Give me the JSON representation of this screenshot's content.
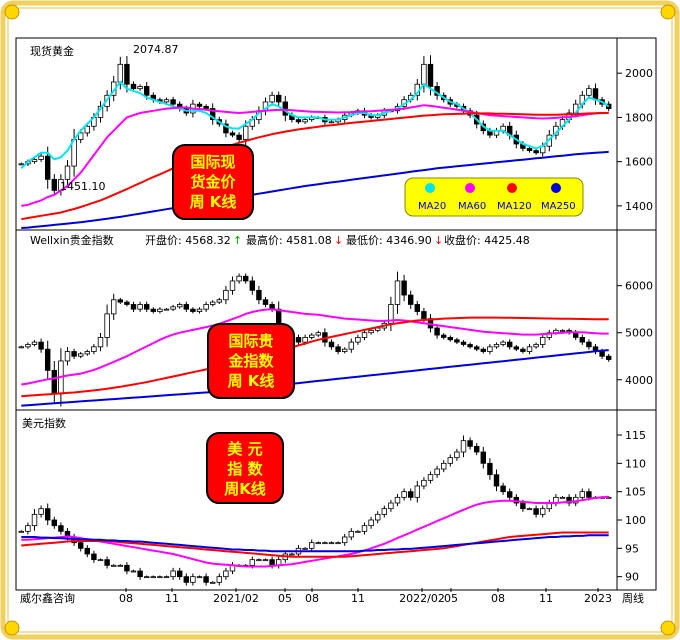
{
  "footer": {
    "brand": "威尔鑫咨询",
    "period": "周线",
    "x_ticks": [
      "08",
      "11",
      "2021/02",
      "05",
      "08",
      "11",
      "2022/02",
      "05",
      "08",
      "11",
      "2023"
    ]
  },
  "colors": {
    "ma20": "#00e5ee",
    "ma60": "#ff00ff",
    "ma120": "#ff0000",
    "ma250": "#0000dd",
    "badge_bg": "#ff0000",
    "badge_text": "#ffff00",
    "legend_bg": "#ffff00",
    "frame": "#f2d060"
  },
  "chart_data": [
    {
      "type": "candlestick",
      "name": "现货黄金",
      "label": "现货黄金",
      "badge": [
        "国际现",
        "货金价",
        "周  K线"
      ],
      "y_ticks": [
        "2000",
        "1800",
        "1600",
        "1400"
      ],
      "ylim": [
        1300,
        2150
      ],
      "annotations": [
        "2074.87",
        "1451.10"
      ],
      "legend": [
        "MA20",
        "MA60",
        "MA120",
        "MA250"
      ],
      "closes": [
        1590,
        1600,
        1610,
        1625,
        1520,
        1470,
        1520,
        1580,
        1700,
        1730,
        1760,
        1800,
        1850,
        1900,
        1960,
        2040,
        1950,
        1930,
        1940,
        1900,
        1880,
        1870,
        1880,
        1860,
        1840,
        1820,
        1860,
        1850,
        1840,
        1790,
        1770,
        1730,
        1720,
        1700,
        1760,
        1790,
        1830,
        1870,
        1900,
        1870,
        1810,
        1790,
        1780,
        1790,
        1800,
        1800,
        1780,
        1780,
        1790,
        1810,
        1820,
        1830,
        1810,
        1800,
        1810,
        1830,
        1830,
        1850,
        1880,
        1900,
        1950,
        2040,
        1940,
        1900,
        1880,
        1860,
        1850,
        1830,
        1810,
        1770,
        1740,
        1720,
        1740,
        1760,
        1720,
        1680,
        1660,
        1650,
        1640,
        1670,
        1720,
        1760,
        1790,
        1820,
        1860,
        1900,
        1930,
        1880,
        1860,
        1840
      ],
      "ma20": [
        1570,
        1600,
        1620,
        1640,
        1640,
        1610,
        1620,
        1650,
        1700,
        1740,
        1770,
        1800,
        1840,
        1880,
        1920,
        1960,
        1930,
        1920,
        1910,
        1890,
        1880,
        1870,
        1860,
        1850,
        1840,
        1830,
        1830,
        1830,
        1820,
        1800,
        1780,
        1760,
        1750,
        1750,
        1770,
        1790,
        1820,
        1840,
        1860,
        1850,
        1830,
        1810,
        1800,
        1800,
        1800,
        1800,
        1790,
        1790,
        1790,
        1800,
        1810,
        1820,
        1820,
        1810,
        1810,
        1820,
        1830,
        1840,
        1860,
        1880,
        1910,
        1950,
        1930,
        1910,
        1890,
        1870,
        1860,
        1840,
        1820,
        1790,
        1760,
        1740,
        1740,
        1740,
        1720,
        1700,
        1680,
        1670,
        1660,
        1670,
        1700,
        1730,
        1760,
        1790,
        1820,
        1860,
        1890,
        1880,
        1870,
        1850
      ],
      "ma60": [
        1400,
        1405,
        1415,
        1425,
        1440,
        1450,
        1470,
        1490,
        1520,
        1550,
        1590,
        1630,
        1670,
        1710,
        1740,
        1770,
        1800,
        1810,
        1820,
        1825,
        1830,
        1835,
        1840,
        1842,
        1845,
        1845,
        1840,
        1838,
        1835,
        1830,
        1828,
        1825,
        1822,
        1820,
        1822,
        1825,
        1828,
        1830,
        1832,
        1834,
        1834,
        1832,
        1830,
        1828,
        1826,
        1825,
        1824,
        1823,
        1822,
        1823,
        1824,
        1826,
        1827,
        1828,
        1830,
        1832,
        1834,
        1836,
        1840,
        1845,
        1850,
        1855,
        1852,
        1848,
        1844,
        1840,
        1835,
        1830,
        1825,
        1820,
        1815,
        1810,
        1808,
        1806,
        1804,
        1802,
        1800,
        1798,
        1796,
        1795,
        1796,
        1798,
        1800,
        1802,
        1806,
        1810,
        1815,
        1818,
        1820,
        1820
      ],
      "ma120": [
        1340,
        1345,
        1350,
        1355,
        1360,
        1365,
        1370,
        1378,
        1386,
        1395,
        1405,
        1415,
        1425,
        1437,
        1450,
        1463,
        1476,
        1490,
        1503,
        1517,
        1530,
        1543,
        1556,
        1570,
        1583,
        1596,
        1610,
        1622,
        1634,
        1645,
        1656,
        1666,
        1676,
        1685,
        1694,
        1702,
        1710,
        1717,
        1724,
        1730,
        1736,
        1741,
        1746,
        1750,
        1754,
        1758,
        1762,
        1765,
        1768,
        1772,
        1775,
        1778,
        1781,
        1784,
        1787,
        1790,
        1793,
        1796,
        1799,
        1802,
        1805,
        1808,
        1810,
        1812,
        1814,
        1815,
        1816,
        1817,
        1818,
        1818,
        1818,
        1818,
        1817,
        1817,
        1816,
        1815,
        1814,
        1813,
        1812,
        1812,
        1812,
        1812,
        1813,
        1814,
        1815,
        1817,
        1818,
        1819,
        1820,
        1820
      ],
      "ma250": [
        1300,
        1302,
        1305,
        1308,
        1311,
        1314,
        1317,
        1320,
        1323,
        1326,
        1330,
        1334,
        1338,
        1342,
        1346,
        1350,
        1355,
        1360,
        1365,
        1370,
        1375,
        1380,
        1385,
        1390,
        1395,
        1400,
        1405,
        1410,
        1415,
        1420,
        1425,
        1430,
        1435,
        1440,
        1445,
        1450,
        1455,
        1460,
        1465,
        1470,
        1475,
        1480,
        1485,
        1490,
        1494,
        1498,
        1502,
        1506,
        1510,
        1514,
        1518,
        1522,
        1526,
        1530,
        1534,
        1538,
        1542,
        1546,
        1550,
        1554,
        1558,
        1562,
        1566,
        1570,
        1573,
        1576,
        1579,
        1582,
        1585,
        1588,
        1591,
        1594,
        1597,
        1600,
        1603,
        1606,
        1609,
        1612,
        1615,
        1618,
        1621,
        1624,
        1627,
        1630,
        1633,
        1636,
        1638,
        1640,
        1642,
        1644
      ]
    },
    {
      "type": "candlestick",
      "name": "Wellxin贵金指数",
      "label": "Wellxin贵金指数",
      "stats": {
        "open": "开盘价: 4568.32",
        "high": "最高价: 4581.08",
        "low": "最低价: 4346.90",
        "close": "收盘价: 4425.48"
      },
      "badge": [
        "国际贵",
        "金指数",
        "周  K线"
      ],
      "y_ticks": [
        "6000",
        "5000",
        "4000"
      ],
      "ylim": [
        3400,
        6800
      ],
      "closes": [
        4700,
        4750,
        4800,
        4650,
        4200,
        3700,
        4400,
        4600,
        4500,
        4550,
        4600,
        4700,
        4900,
        5400,
        5700,
        5650,
        5600,
        5500,
        5600,
        5500,
        5450,
        5500,
        5500,
        5550,
        5600,
        5500,
        5450,
        5500,
        5600,
        5650,
        5700,
        5900,
        6100,
        6200,
        6100,
        5900,
        5700,
        5600,
        5500,
        5100,
        5000,
        4900,
        4800,
        4900,
        4950,
        5000,
        4800,
        4700,
        4600,
        4650,
        4800,
        4900,
        5000,
        5050,
        5100,
        5200,
        5600,
        6100,
        5800,
        5600,
        5450,
        5300,
        5100,
        4950,
        4900,
        4850,
        4800,
        4750,
        4700,
        4650,
        4600,
        4700,
        4750,
        4800,
        4700,
        4650,
        4600,
        4700,
        4750,
        4900,
        5000,
        5050,
        5050,
        5000,
        4900,
        4800,
        4700,
        4600,
        4500,
        4430
      ],
      "ma60": [
        3900,
        3920,
        3950,
        3980,
        4010,
        4030,
        4060,
        4090,
        4110,
        4130,
        4170,
        4210,
        4260,
        4320,
        4380,
        4440,
        4500,
        4570,
        4640,
        4710,
        4780,
        4850,
        4910,
        4960,
        5000,
        5030,
        5060,
        5090,
        5120,
        5150,
        5190,
        5240,
        5290,
        5340,
        5400,
        5440,
        5470,
        5490,
        5500,
        5480,
        5460,
        5440,
        5420,
        5400,
        5390,
        5380,
        5360,
        5340,
        5320,
        5300,
        5290,
        5280,
        5270,
        5260,
        5250,
        5250,
        5260,
        5270,
        5260,
        5240,
        5220,
        5200,
        5180,
        5160,
        5140,
        5120,
        5100,
        5080,
        5060,
        5040,
        5020,
        5010,
        5000,
        4990,
        4980,
        4970,
        4960,
        4960,
        4960,
        4970,
        4980,
        4990,
        5000,
        5010,
        5010,
        5010,
        5000,
        4990,
        4980,
        4980
      ],
      "ma120": [
        3650,
        3660,
        3670,
        3680,
        3690,
        3700,
        3710,
        3720,
        3730,
        3745,
        3760,
        3775,
        3790,
        3810,
        3830,
        3850,
        3875,
        3900,
        3925,
        3950,
        3980,
        4010,
        4040,
        4070,
        4100,
        4130,
        4160,
        4190,
        4220,
        4250,
        4280,
        4310,
        4340,
        4370,
        4410,
        4450,
        4490,
        4530,
        4570,
        4610,
        4650,
        4690,
        4730,
        4770,
        4810,
        4850,
        4880,
        4910,
        4940,
        4970,
        5000,
        5030,
        5060,
        5090,
        5120,
        5150,
        5180,
        5200,
        5220,
        5240,
        5260,
        5270,
        5280,
        5290,
        5300,
        5305,
        5310,
        5315,
        5320,
        5320,
        5320,
        5320,
        5320,
        5318,
        5316,
        5314,
        5312,
        5310,
        5308,
        5305,
        5302,
        5300,
        5298,
        5296,
        5294,
        5292,
        5290,
        5288,
        5286,
        5285
      ],
      "ma250": [
        3450,
        3460,
        3470,
        3480,
        3490,
        3500,
        3510,
        3520,
        3530,
        3540,
        3550,
        3560,
        3570,
        3580,
        3590,
        3600,
        3610,
        3620,
        3630,
        3640,
        3650,
        3660,
        3670,
        3680,
        3690,
        3700,
        3710,
        3720,
        3730,
        3740,
        3750,
        3765,
        3780,
        3795,
        3810,
        3825,
        3840,
        3855,
        3870,
        3885,
        3900,
        3915,
        3930,
        3945,
        3960,
        3975,
        3990,
        4005,
        4020,
        4035,
        4050,
        4065,
        4080,
        4095,
        4110,
        4125,
        4140,
        4155,
        4170,
        4185,
        4200,
        4215,
        4230,
        4245,
        4260,
        4275,
        4290,
        4305,
        4320,
        4335,
        4350,
        4365,
        4380,
        4395,
        4410,
        4425,
        4440,
        4455,
        4470,
        4485,
        4500,
        4515,
        4530,
        4545,
        4560,
        4575,
        4590,
        4605,
        4620,
        4630
      ]
    },
    {
      "type": "candlestick",
      "name": "美元指数",
      "label": "美元指数",
      "badge": [
        "美  元",
        "指  数",
        "周K线"
      ],
      "y_ticks": [
        "115",
        "110",
        "105",
        "100",
        "95",
        "90"
      ],
      "ylim": [
        88,
        118
      ],
      "closes": [
        98,
        99,
        101,
        102,
        100,
        99,
        98,
        97,
        96,
        95,
        94,
        93,
        93,
        92,
        92,
        92,
        91,
        91,
        90,
        90,
        90,
        90,
        90,
        91,
        90,
        89,
        90,
        90,
        89,
        89,
        90,
        91,
        92,
        92,
        92,
        93,
        93,
        93,
        92,
        93,
        94,
        94,
        95,
        95,
        96,
        96,
        96,
        96,
        96,
        97,
        98,
        98,
        99,
        100,
        101,
        102,
        103,
        104,
        105,
        104,
        106,
        107,
        108,
        109,
        110,
        111,
        112,
        114,
        113,
        112,
        110,
        108,
        106,
        105,
        104,
        103,
        102,
        102,
        101,
        102,
        103,
        104,
        104,
        103,
        104,
        105,
        104,
        104,
        104,
        104
      ],
      "ma60": [
        96.5,
        96.5,
        96.6,
        96.7,
        96.8,
        96.9,
        97.0,
        97.1,
        97.0,
        96.8,
        96.6,
        96.4,
        96.2,
        96.0,
        95.8,
        95.6,
        95.4,
        95.2,
        95.0,
        94.8,
        94.6,
        94.4,
        94.2,
        94.0,
        93.7,
        93.4,
        93.1,
        92.8,
        92.5,
        92.3,
        92.2,
        92.1,
        92.0,
        91.9,
        91.8,
        91.8,
        91.8,
        91.8,
        91.9,
        92.0,
        92.1,
        92.2,
        92.4,
        92.6,
        92.8,
        93.0,
        93.2,
        93.4,
        93.6,
        93.8,
        94.0,
        94.3,
        94.6,
        95.0,
        95.4,
        95.8,
        96.3,
        96.8,
        97.3,
        97.8,
        98.3,
        98.8,
        99.3,
        99.8,
        100.3,
        100.8,
        101.3,
        101.8,
        102.3,
        102.7,
        103.0,
        103.2,
        103.3,
        103.4,
        103.4,
        103.3,
        103.2,
        103.1,
        103.0,
        103.0,
        103.0,
        103.0,
        103.1,
        103.2,
        103.3,
        103.5,
        103.7,
        103.9,
        104.0,
        104.1
      ],
      "ma120": [
        95.5,
        95.6,
        95.7,
        95.8,
        95.9,
        96.0,
        96.1,
        96.2,
        96.3,
        96.3,
        96.3,
        96.3,
        96.3,
        96.3,
        96.2,
        96.1,
        96.0,
        95.9,
        95.8,
        95.7,
        95.6,
        95.5,
        95.4,
        95.3,
        95.2,
        95.1,
        95.0,
        94.9,
        94.8,
        94.7,
        94.6,
        94.5,
        94.4,
        94.3,
        94.2,
        94.1,
        94.0,
        93.9,
        93.8,
        93.7,
        93.6,
        93.5,
        93.5,
        93.5,
        93.5,
        93.5,
        93.5,
        93.5,
        93.5,
        93.5,
        93.6,
        93.7,
        93.8,
        93.9,
        94.0,
        94.1,
        94.2,
        94.3,
        94.4,
        94.5,
        94.6,
        94.7,
        94.8,
        94.9,
        95.0,
        95.2,
        95.4,
        95.6,
        95.8,
        96.0,
        96.2,
        96.4,
        96.6,
        96.8,
        97.0,
        97.1,
        97.2,
        97.3,
        97.4,
        97.5,
        97.6,
        97.7,
        97.8,
        97.8,
        97.8,
        97.8,
        97.8,
        97.8,
        97.8,
        97.8
      ],
      "ma250": [
        97.0,
        97.0,
        97.0,
        96.9,
        96.9,
        96.8,
        96.8,
        96.7,
        96.7,
        96.6,
        96.6,
        96.5,
        96.5,
        96.4,
        96.4,
        96.3,
        96.3,
        96.2,
        96.2,
        96.1,
        96.0,
        95.9,
        95.8,
        95.7,
        95.6,
        95.5,
        95.4,
        95.3,
        95.2,
        95.1,
        95.0,
        94.9,
        94.8,
        94.8,
        94.7,
        94.7,
        94.6,
        94.6,
        94.5,
        94.5,
        94.5,
        94.5,
        94.5,
        94.5,
        94.5,
        94.5,
        94.5,
        94.5,
        94.5,
        94.5,
        94.5,
        94.5,
        94.6,
        94.6,
        94.7,
        94.7,
        94.8,
        94.8,
        94.9,
        94.9,
        95.0,
        95.1,
        95.2,
        95.3,
        95.4,
        95.5,
        95.6,
        95.7,
        95.8,
        95.9,
        96.0,
        96.1,
        96.2,
        96.3,
        96.4,
        96.5,
        96.6,
        96.7,
        96.8,
        96.9,
        97.0,
        97.0,
        97.1,
        97.1,
        97.2,
        97.2,
        97.3,
        97.3,
        97.3,
        97.3
      ]
    }
  ]
}
